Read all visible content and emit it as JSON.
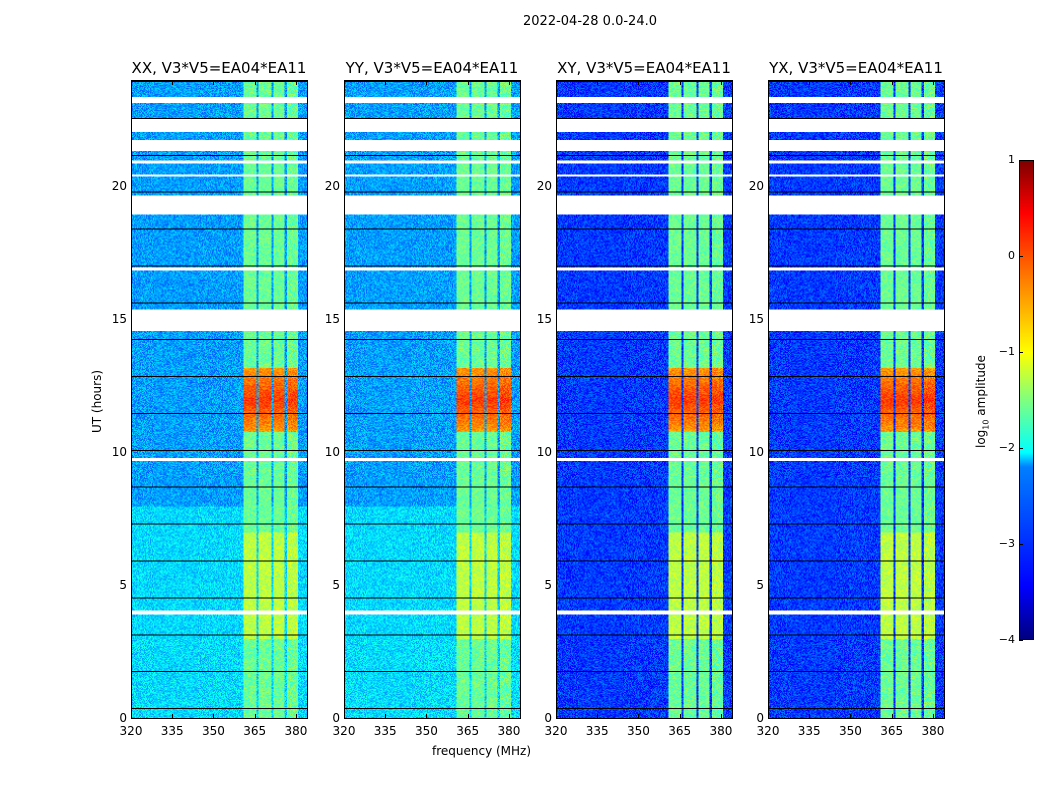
{
  "figure": {
    "suptitle": "2022-04-28 0.0-24.0"
  },
  "chart_data": {
    "type": "heatmap",
    "title": "2022-04-28 0.0-24.0",
    "xlabel": "frequency (MHz)",
    "ylabel": "UT (hours)",
    "xlim": [
      320,
      384.4
    ],
    "ylim": [
      0,
      24
    ],
    "xticks": [
      "320",
      "335",
      "350",
      "365",
      "380"
    ],
    "xtick_values": [
      320,
      335,
      350,
      365,
      380
    ],
    "yticks": [
      "0",
      "5",
      "10",
      "15",
      "20"
    ],
    "ytick_values": [
      0,
      5,
      10,
      15,
      20
    ],
    "panels": [
      {
        "title": "XX, V3*V5=EA04*EA11",
        "background_log": -2.6,
        "low_hours_background_log": -2.3
      },
      {
        "title": "YY, V3*V5=EA04*EA11",
        "background_log": -2.6,
        "low_hours_background_log": -2.3
      },
      {
        "title": "XY, V3*V5=EA04*EA11",
        "background_log": -3.1,
        "low_hours_background_log": -3.1
      },
      {
        "title": "YX, V3*V5=EA04*EA11",
        "background_log": -3.1,
        "low_hours_background_log": -3.1
      }
    ],
    "rfi_bands_mhz": [
      [
        361,
        365.5
      ],
      [
        366.5,
        371
      ],
      [
        372,
        376
      ],
      [
        377,
        381
      ]
    ],
    "rfi_band_level_log": -1.6,
    "rfi_peak_hours": [
      10.8,
      13.2
    ],
    "rfi_peak_level_log": 0.1,
    "flagged_ut_hours": [
      [
        23.2,
        23.4
      ],
      [
        22.1,
        22.6
      ],
      [
        21.4,
        21.8
      ],
      [
        20.9,
        21.0
      ],
      [
        20.4,
        20.5
      ],
      [
        19.0,
        19.7
      ],
      [
        16.9,
        17.0
      ],
      [
        15.4,
        14.6
      ],
      [
        9.72,
        9.83
      ],
      [
        3.94,
        4.09
      ]
    ],
    "colorbar": {
      "label": "log10 amplitude",
      "label_base": "log",
      "label_sub": "10",
      "label_rest": " amplitude",
      "ticks": [
        "1",
        "0",
        "−1",
        "−2",
        "−3",
        "−4"
      ],
      "tick_values": [
        1,
        0,
        -1,
        -2,
        -3,
        -4
      ],
      "vmin": -4,
      "vmax": 1,
      "colormap": "jet"
    }
  }
}
